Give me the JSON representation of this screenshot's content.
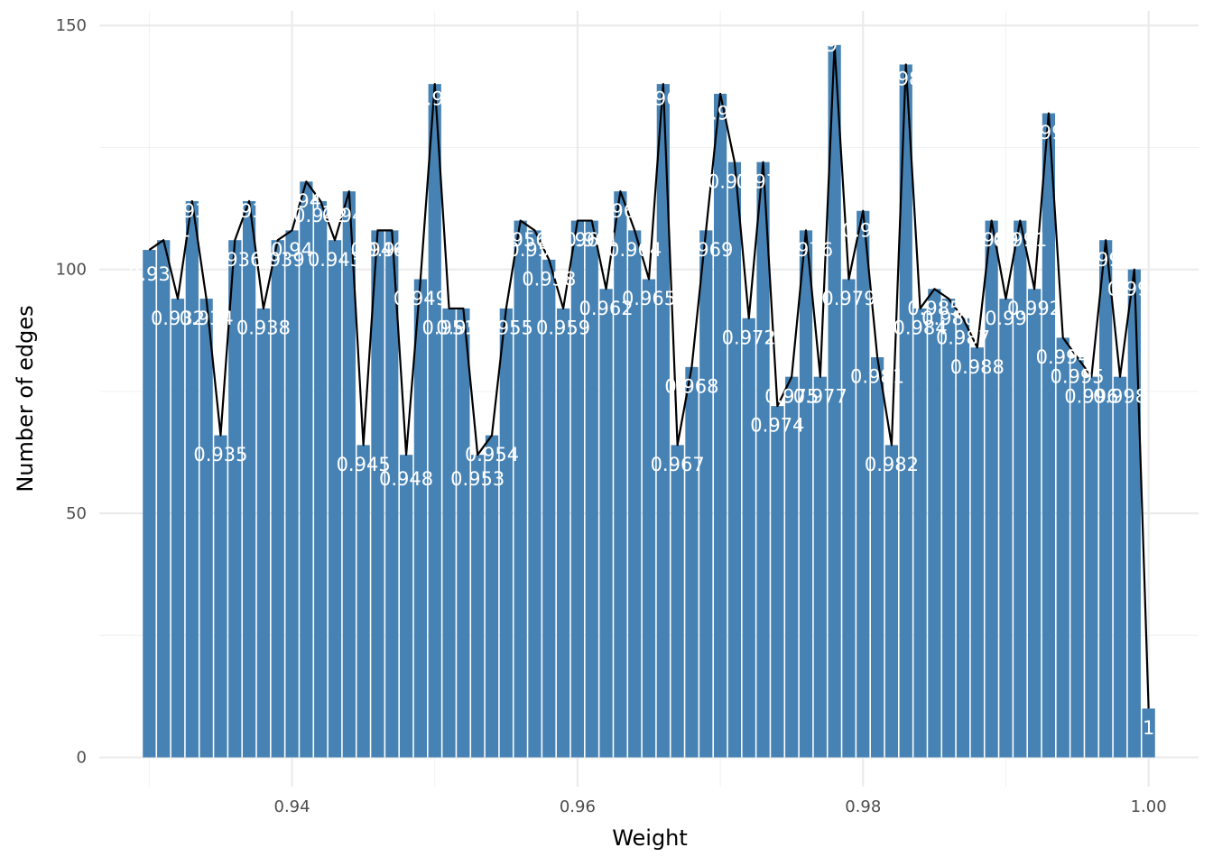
{
  "chart_data": {
    "type": "bar",
    "xlabel": "Weight",
    "ylabel": "Number of edges",
    "x_ticks": [
      0.94,
      0.96,
      0.98,
      1.0
    ],
    "x_tick_labels": [
      "0.94",
      "0.96",
      "0.98",
      "1.00"
    ],
    "y_ticks": [
      0,
      50,
      100,
      150
    ],
    "y_tick_labels": [
      "0",
      "50",
      "100",
      "150"
    ],
    "xlim": [
      0.9265,
      1.0035
    ],
    "ylim": [
      -6,
      153
    ],
    "grid": true,
    "line_overlay": true,
    "bar_color": "#4682b4",
    "line_color": "#000000",
    "label_color": "#ffffff",
    "x": [
      0.93,
      0.931,
      0.932,
      0.933,
      0.934,
      0.935,
      0.936,
      0.937,
      0.938,
      0.939,
      0.94,
      0.941,
      0.942,
      0.943,
      0.944,
      0.945,
      0.946,
      0.947,
      0.948,
      0.949,
      0.95,
      0.951,
      0.952,
      0.953,
      0.954,
      0.955,
      0.956,
      0.957,
      0.958,
      0.959,
      0.96,
      0.961,
      0.962,
      0.963,
      0.964,
      0.965,
      0.966,
      0.967,
      0.968,
      0.969,
      0.97,
      0.971,
      0.972,
      0.973,
      0.974,
      0.975,
      0.976,
      0.977,
      0.978,
      0.979,
      0.98,
      0.981,
      0.982,
      0.983,
      0.984,
      0.985,
      0.986,
      0.987,
      0.988,
      0.989,
      0.99,
      0.991,
      0.992,
      0.993,
      0.994,
      0.995,
      0.996,
      0.997,
      0.998,
      0.999,
      1.0
    ],
    "values": [
      104,
      106,
      94,
      114,
      94,
      66,
      106,
      114,
      92,
      106,
      108,
      118,
      114,
      106,
      116,
      64,
      108,
      108,
      62,
      98,
      138,
      92,
      92,
      62,
      66,
      92,
      110,
      108,
      102,
      92,
      110,
      110,
      96,
      116,
      108,
      98,
      138,
      64,
      80,
      108,
      136,
      122,
      90,
      122,
      72,
      78,
      108,
      78,
      146,
      98,
      112,
      82,
      64,
      142,
      92,
      96,
      94,
      90,
      84,
      110,
      94,
      110,
      96,
      132,
      86,
      82,
      78,
      106,
      78,
      100,
      10
    ],
    "labels": [
      "0.93",
      "0.931",
      "0.932",
      "0.933",
      "0.934",
      "0.935",
      "0.936",
      "0.937",
      "0.938",
      "0.939",
      "0.94",
      "0.941",
      "0.942",
      "0.943",
      "0.944",
      "0.945",
      "0.946",
      "0.947",
      "0.948",
      "0.949",
      "0.95",
      "0.951",
      "0.952",
      "0.953",
      "0.954",
      "0.955",
      "0.956",
      "0.957",
      "0.958",
      "0.959",
      "0.96",
      "0.961",
      "0.962",
      "0.963",
      "0.964",
      "0.965",
      "0.966",
      "0.967",
      "0.968",
      "0.969",
      "0.97",
      "0.971",
      "0.972",
      "0.973",
      "0.974",
      "0.975",
      "0.976",
      "0.977",
      "0.978",
      "0.979",
      "0.98",
      "0.981",
      "0.982",
      "0.983",
      "0.984",
      "0.985",
      "0.986",
      "0.987",
      "0.988",
      "0.989",
      "0.99",
      "0.991",
      "0.992",
      "0.993",
      "0.994",
      "0.995",
      "0.996",
      "0.997",
      "0.998",
      "0.999",
      "1"
    ],
    "label_y": [
      99,
      108,
      90,
      112,
      90,
      62,
      102,
      112,
      88,
      102,
      104,
      114,
      111,
      102,
      111,
      60,
      104,
      104,
      57,
      94,
      135,
      88,
      88,
      57,
      62,
      88,
      106,
      104,
      98,
      88,
      106,
      106,
      92,
      112,
      104,
      94,
      135,
      60,
      76,
      104,
      132,
      118,
      86,
      118,
      68,
      74,
      104,
      74,
      146,
      94,
      108,
      78,
      60,
      139,
      88,
      92,
      90,
      86,
      80,
      106,
      90,
      106,
      92,
      128,
      82,
      78,
      74,
      102,
      74,
      96,
      6
    ]
  }
}
